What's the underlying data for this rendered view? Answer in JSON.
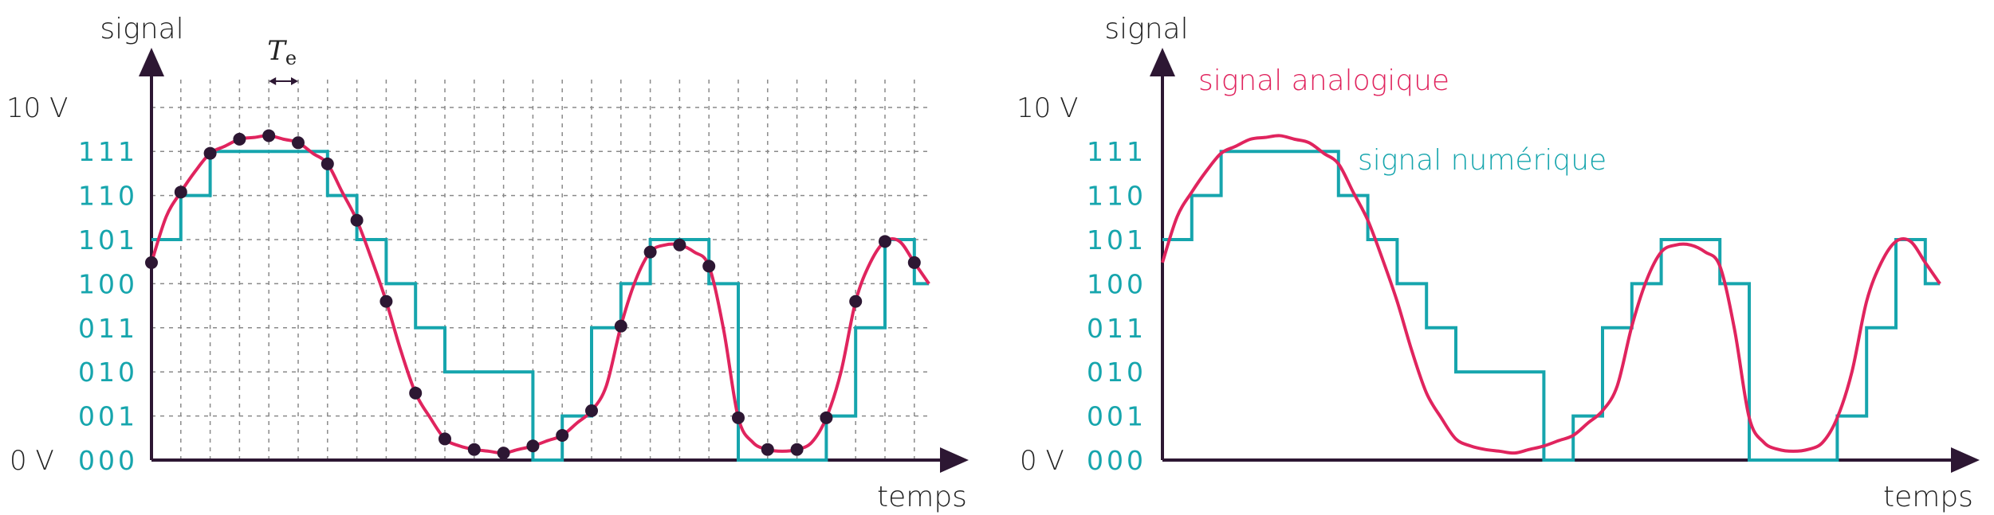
{
  "colors": {
    "axis": "#2d1733",
    "analog": "#e0245e",
    "digital": "#16a5ad",
    "sample": "#2d1733",
    "text": "#222222"
  },
  "panels": [
    {
      "id": "left",
      "y_axis_label": "signal",
      "x_axis_label": "temps",
      "top_label": "10 V",
      "bottom_label": "0 V",
      "period_label_main": "T",
      "period_label_sub": "e",
      "codes": [
        "111",
        "110",
        "101",
        "100",
        "011",
        "010",
        "001",
        "000"
      ],
      "show_grid": true,
      "show_samples": true,
      "show_curve_labels": false
    },
    {
      "id": "right",
      "y_axis_label": "signal",
      "x_axis_label": "temps",
      "top_label": "10 V",
      "bottom_label": "0 V",
      "codes": [
        "111",
        "110",
        "101",
        "100",
        "011",
        "010",
        "001",
        "000"
      ],
      "show_grid": false,
      "show_samples": false,
      "show_curve_labels": true,
      "analog_label": "signal analogique",
      "digital_label": "signal numérique"
    }
  ],
  "chart_data": {
    "type": "line",
    "series": [
      {
        "name": "signal analogique",
        "x": [
          0,
          0.5,
          1,
          1.5,
          2,
          2.5,
          3,
          3.5,
          4,
          4.5,
          5,
          5.5,
          6,
          6.5,
          7,
          7.5,
          8,
          8.5,
          9,
          9.5,
          10,
          10.5,
          11,
          11.5,
          12,
          12.5,
          13,
          13.5,
          14,
          14.5,
          15,
          15.5,
          16,
          16.5,
          17,
          17.5,
          18,
          18.5,
          19,
          19.5,
          20,
          20.5,
          21,
          21.5,
          22,
          22.5,
          23,
          23.5,
          24,
          24.5,
          25,
          25.5,
          26,
          26.5
        ],
        "y": [
          5.6,
          6.9,
          7.6,
          8.2,
          8.7,
          8.9,
          9.1,
          9.15,
          9.2,
          9.1,
          9.0,
          8.7,
          8.4,
          7.6,
          6.8,
          5.7,
          4.5,
          3.1,
          1.9,
          1.2,
          0.6,
          0.4,
          0.3,
          0.25,
          0.2,
          0.3,
          0.4,
          0.55,
          0.7,
          1.05,
          1.4,
          2.1,
          3.8,
          5.1,
          5.9,
          6.1,
          6.1,
          5.9,
          5.5,
          3.7,
          1.2,
          0.5,
          0.3,
          0.25,
          0.3,
          0.5,
          1.2,
          2.5,
          4.5,
          5.6,
          6.2,
          6.2,
          5.6,
          5.0
        ]
      },
      {
        "name": "signal numérique",
        "step_x": [
          0,
          1,
          2,
          6,
          7,
          8,
          9,
          10,
          13,
          14,
          15,
          16,
          17,
          19,
          20,
          23,
          24,
          25,
          26,
          26.5
        ],
        "step_code": [
          5,
          6,
          7,
          6,
          5,
          4,
          3,
          2,
          0,
          1,
          3,
          4,
          5,
          4,
          0,
          1,
          3,
          5,
          4,
          4
        ]
      },
      {
        "name": "samples",
        "x": [
          0,
          1,
          2,
          3,
          4,
          5,
          6,
          7,
          8,
          9,
          10,
          11,
          12,
          13,
          14,
          15,
          16,
          17,
          18,
          19,
          20,
          21,
          22,
          23,
          24,
          25,
          26
        ],
        "y": [
          5.6,
          7.6,
          8.7,
          9.1,
          9.2,
          9.0,
          8.4,
          6.8,
          4.5,
          1.9,
          0.6,
          0.3,
          0.2,
          0.4,
          0.7,
          1.4,
          3.8,
          5.9,
          6.1,
          5.5,
          1.2,
          0.3,
          0.3,
          1.2,
          4.5,
          6.2,
          5.6
        ]
      }
    ],
    "x_range": [
      0,
      26.5
    ],
    "y_range": [
      0,
      10
    ],
    "levels": 8
  }
}
